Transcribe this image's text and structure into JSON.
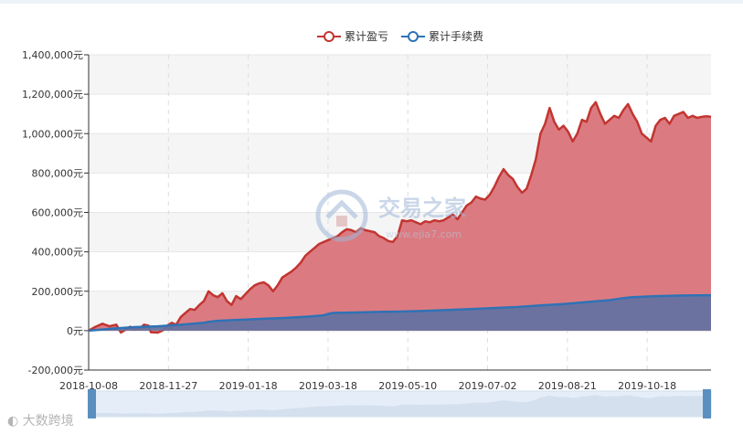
{
  "legend": [
    {
      "name": "累计盈亏",
      "color": "#c23531"
    },
    {
      "name": "累计手续费",
      "color": "#2f72b5"
    }
  ],
  "watermark": {
    "text": "交易之家",
    "sub": "www.ejia7.com"
  },
  "brand": {
    "text": "大数跨境"
  },
  "chart_data": {
    "type": "area",
    "title": "",
    "x_ticks": [
      "2018-10-08",
      "2018-11-27",
      "2019-01-18",
      "2019-03-18",
      "2019-05-10",
      "2019-07-02",
      "2019-08-21",
      "2019-10-18"
    ],
    "y_ticks": [
      "1,400,000元",
      "1,200,000元",
      "1,000,000元",
      "800,000元",
      "600,000元",
      "400,000元",
      "200,000元",
      "0元",
      "-200,000元"
    ],
    "ylim": [
      -200000,
      1400000
    ],
    "grid": true,
    "legend_position": "top-center",
    "series": [
      {
        "name": "累计盈亏",
        "color": "#c23531",
        "fill": "#d9747a",
        "points": [
          [
            0,
            0
          ],
          [
            3,
            20000
          ],
          [
            6,
            35000
          ],
          [
            9,
            22000
          ],
          [
            12,
            30000
          ],
          [
            14,
            -10000
          ],
          [
            16,
            5000
          ],
          [
            18,
            20000
          ],
          [
            20,
            5000
          ],
          [
            22,
            10000
          ],
          [
            24,
            30000
          ],
          [
            26,
            25000
          ],
          [
            27,
            -8000
          ],
          [
            30,
            -10000
          ],
          [
            32,
            0
          ],
          [
            34,
            25000
          ],
          [
            36,
            40000
          ],
          [
            38,
            30000
          ],
          [
            40,
            70000
          ],
          [
            42,
            90000
          ],
          [
            44,
            110000
          ],
          [
            46,
            105000
          ],
          [
            48,
            130000
          ],
          [
            50,
            150000
          ],
          [
            52,
            200000
          ],
          [
            54,
            180000
          ],
          [
            56,
            170000
          ],
          [
            58,
            190000
          ],
          [
            60,
            150000
          ],
          [
            62,
            130000
          ],
          [
            64,
            175000
          ],
          [
            66,
            160000
          ],
          [
            68,
            185000
          ],
          [
            70,
            210000
          ],
          [
            72,
            230000
          ],
          [
            74,
            240000
          ],
          [
            76,
            245000
          ],
          [
            78,
            230000
          ],
          [
            80,
            200000
          ],
          [
            82,
            230000
          ],
          [
            84,
            270000
          ],
          [
            86,
            285000
          ],
          [
            88,
            300000
          ],
          [
            90,
            320000
          ],
          [
            92,
            345000
          ],
          [
            94,
            380000
          ],
          [
            96,
            400000
          ],
          [
            98,
            420000
          ],
          [
            100,
            440000
          ],
          [
            102,
            450000
          ],
          [
            104,
            460000
          ],
          [
            106,
            470000
          ],
          [
            108,
            480000
          ],
          [
            110,
            500000
          ],
          [
            112,
            515000
          ],
          [
            114,
            510000
          ],
          [
            116,
            500000
          ],
          [
            118,
            520000
          ],
          [
            120,
            510000
          ],
          [
            122,
            505000
          ],
          [
            124,
            500000
          ],
          [
            126,
            480000
          ],
          [
            128,
            470000
          ],
          [
            130,
            455000
          ],
          [
            132,
            450000
          ],
          [
            134,
            480000
          ],
          [
            136,
            560000
          ],
          [
            138,
            555000
          ],
          [
            140,
            560000
          ],
          [
            142,
            550000
          ],
          [
            144,
            540000
          ],
          [
            146,
            555000
          ],
          [
            148,
            550000
          ],
          [
            150,
            560000
          ],
          [
            152,
            555000
          ],
          [
            154,
            560000
          ],
          [
            156,
            575000
          ],
          [
            158,
            590000
          ],
          [
            160,
            565000
          ],
          [
            162,
            600000
          ],
          [
            164,
            635000
          ],
          [
            166,
            650000
          ],
          [
            168,
            680000
          ],
          [
            170,
            670000
          ],
          [
            172,
            665000
          ],
          [
            174,
            690000
          ],
          [
            176,
            730000
          ],
          [
            178,
            780000
          ],
          [
            180,
            820000
          ],
          [
            182,
            790000
          ],
          [
            184,
            770000
          ],
          [
            186,
            730000
          ],
          [
            188,
            700000
          ],
          [
            190,
            720000
          ],
          [
            192,
            790000
          ],
          [
            194,
            870000
          ],
          [
            196,
            1000000
          ],
          [
            198,
            1050000
          ],
          [
            200,
            1130000
          ],
          [
            202,
            1060000
          ],
          [
            204,
            1020000
          ],
          [
            206,
            1040000
          ],
          [
            208,
            1010000
          ],
          [
            210,
            960000
          ],
          [
            212,
            1000000
          ],
          [
            214,
            1070000
          ],
          [
            216,
            1060000
          ],
          [
            218,
            1130000
          ],
          [
            220,
            1160000
          ],
          [
            222,
            1100000
          ],
          [
            224,
            1050000
          ],
          [
            226,
            1070000
          ],
          [
            228,
            1090000
          ],
          [
            230,
            1080000
          ],
          [
            232,
            1120000
          ],
          [
            234,
            1150000
          ],
          [
            236,
            1100000
          ],
          [
            238,
            1060000
          ],
          [
            240,
            1000000
          ],
          [
            242,
            980000
          ],
          [
            244,
            960000
          ],
          [
            246,
            1040000
          ],
          [
            248,
            1070000
          ],
          [
            250,
            1080000
          ],
          [
            252,
            1050000
          ],
          [
            254,
            1090000
          ],
          [
            256,
            1100000
          ],
          [
            258,
            1110000
          ],
          [
            260,
            1080000
          ],
          [
            262,
            1090000
          ],
          [
            264,
            1080000
          ],
          [
            266,
            1085000
          ],
          [
            268,
            1088000
          ],
          [
            270,
            1085000
          ]
        ]
      },
      {
        "name": "累计手续费",
        "color": "#2f72b5",
        "fill": "#6672a0",
        "points": [
          [
            0,
            0
          ],
          [
            10,
            10000
          ],
          [
            20,
            18000
          ],
          [
            30,
            22000
          ],
          [
            40,
            30000
          ],
          [
            50,
            40000
          ],
          [
            52,
            45000
          ],
          [
            56,
            50000
          ],
          [
            66,
            55000
          ],
          [
            76,
            60000
          ],
          [
            86,
            65000
          ],
          [
            96,
            72000
          ],
          [
            102,
            78000
          ],
          [
            104,
            85000
          ],
          [
            106,
            90000
          ],
          [
            116,
            92000
          ],
          [
            126,
            95000
          ],
          [
            136,
            97000
          ],
          [
            146,
            100000
          ],
          [
            156,
            105000
          ],
          [
            166,
            110000
          ],
          [
            176,
            115000
          ],
          [
            186,
            120000
          ],
          [
            196,
            128000
          ],
          [
            206,
            135000
          ],
          [
            216,
            145000
          ],
          [
            226,
            155000
          ],
          [
            232,
            165000
          ],
          [
            236,
            170000
          ],
          [
            246,
            175000
          ],
          [
            256,
            178000
          ],
          [
            270,
            180000
          ]
        ]
      }
    ],
    "x_domain": [
      0,
      270
    ]
  }
}
